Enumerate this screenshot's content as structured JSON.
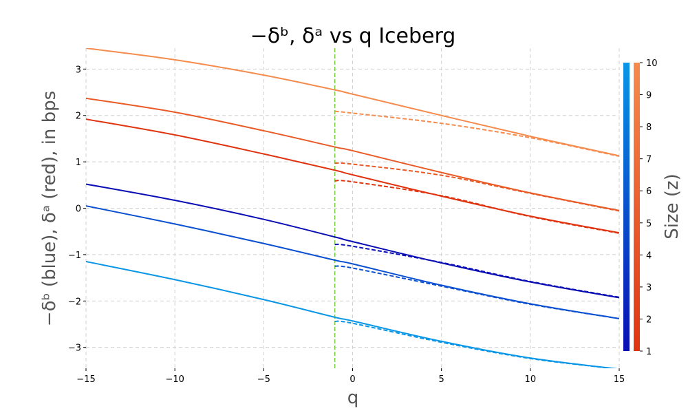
{
  "chart_data": {
    "type": "line",
    "title": "−δᵇ, δᵃ vs q Iceberg",
    "xlabel": "q",
    "ylabel": "−δᵇ (blue), δᵃ (red), in bps",
    "xlim": [
      -15,
      15
    ],
    "ylim": [
      -3.45,
      3.45
    ],
    "xticks": [
      -15,
      -10,
      -5,
      0,
      5,
      10,
      15
    ],
    "xtick_labels": [
      "−15",
      "−10",
      "−5",
      "0",
      "5",
      "10",
      "15"
    ],
    "yticks": [
      -3,
      -2,
      -1,
      0,
      1,
      2,
      3
    ],
    "ytick_labels": [
      "−3",
      "−2",
      "−1",
      "0",
      "1",
      "2",
      "3"
    ],
    "grid": true,
    "vline": {
      "x": -1,
      "color": "#7ac943"
    },
    "series": [
      {
        "name": "δᵃ z=10 (iceberg off)",
        "color": "#f58b4c",
        "style": "solid",
        "x": [
          -15,
          -10,
          -5,
          -1,
          0,
          5,
          10,
          15
        ],
        "y": [
          3.45,
          3.2,
          2.87,
          2.55,
          2.46,
          2.0,
          1.55,
          1.13
        ]
      },
      {
        "name": "δᵃ z=5 (iceberg off)",
        "color": "#ea5a26",
        "style": "solid",
        "x": [
          -15,
          -10,
          -5,
          -1,
          0,
          5,
          10,
          15
        ],
        "y": [
          2.37,
          2.07,
          1.67,
          1.32,
          1.24,
          0.77,
          0.33,
          -0.05
        ]
      },
      {
        "name": "δᵃ z=1 (iceberg off)",
        "color": "#e03410",
        "style": "solid",
        "x": [
          -15,
          -10,
          -5,
          -1,
          0,
          5,
          10,
          15
        ],
        "y": [
          1.92,
          1.58,
          1.17,
          0.82,
          0.72,
          0.26,
          -0.17,
          -0.53
        ]
      },
      {
        "name": "−δᵇ z=1 (iceberg off)",
        "color": "#0a0eb4",
        "style": "solid",
        "x": [
          -15,
          -10,
          -5,
          -1,
          0,
          5,
          10,
          15
        ],
        "y": [
          0.52,
          0.17,
          -0.24,
          -0.62,
          -0.72,
          -1.18,
          -1.59,
          -1.93
        ]
      },
      {
        "name": "−δᵇ z=5 (iceberg off)",
        "color": "#0a50d0",
        "style": "solid",
        "x": [
          -15,
          -10,
          -5,
          -1,
          0,
          5,
          10,
          15
        ],
        "y": [
          0.05,
          -0.34,
          -0.76,
          -1.12,
          -1.2,
          -1.66,
          -2.06,
          -2.38
        ]
      },
      {
        "name": "−δᵇ z=10 (iceberg off)",
        "color": "#0a96e6",
        "style": "solid",
        "x": [
          -15,
          -10,
          -5,
          -1,
          0,
          5,
          10,
          15
        ],
        "y": [
          -1.15,
          -1.54,
          -1.97,
          -2.35,
          -2.43,
          -2.87,
          -3.23,
          -3.47
        ]
      },
      {
        "name": "δᵃ z=10 (iceberg)",
        "color": "#f58b4c",
        "style": "dashed",
        "x": [
          -1,
          0,
          5,
          10,
          15
        ],
        "y": [
          2.09,
          2.05,
          1.83,
          1.52,
          1.12
        ]
      },
      {
        "name": "δᵃ z=5 (iceberg)",
        "color": "#ea5a26",
        "style": "dashed",
        "x": [
          -1,
          0,
          5,
          10,
          15
        ],
        "y": [
          0.97,
          0.95,
          0.71,
          0.32,
          -0.06
        ]
      },
      {
        "name": "δᵃ z=1 (iceberg)",
        "color": "#e03410",
        "style": "dashed",
        "x": [
          -1,
          0,
          5,
          10,
          15
        ],
        "y": [
          0.59,
          0.57,
          0.27,
          -0.18,
          -0.54
        ]
      },
      {
        "name": "−δᵇ z=1 (iceberg)",
        "color": "#0a0eb4",
        "style": "dashed",
        "x": [
          -1,
          0,
          5,
          10,
          15
        ],
        "y": [
          -0.78,
          -0.82,
          -1.17,
          -1.58,
          -1.92
        ]
      },
      {
        "name": "−δᵇ z=5 (iceberg)",
        "color": "#0a50d0",
        "style": "dashed",
        "x": [
          -1,
          0,
          5,
          10,
          15
        ],
        "y": [
          -1.25,
          -1.29,
          -1.68,
          -2.07,
          -2.38
        ]
      },
      {
        "name": "−δᵇ z=10 (iceberg)",
        "color": "#0a96e6",
        "style": "dashed",
        "x": [
          -1,
          0,
          5,
          10,
          15
        ],
        "y": [
          -2.44,
          -2.48,
          -2.89,
          -3.24,
          -3.47
        ]
      }
    ],
    "colorbar": {
      "label": "Size (z)",
      "range": [
        1,
        10
      ],
      "ticks": [
        1,
        2,
        3,
        4,
        5,
        6,
        7,
        8,
        9,
        10
      ],
      "tick_labels": [
        "1",
        "2",
        "3",
        "4",
        "5",
        "6",
        "7",
        "8",
        "9",
        "10"
      ],
      "blue_gradient": [
        "#0a0eb4",
        "#0a96e6"
      ],
      "red_gradient": [
        "#e03410",
        "#f58b4c"
      ]
    }
  }
}
